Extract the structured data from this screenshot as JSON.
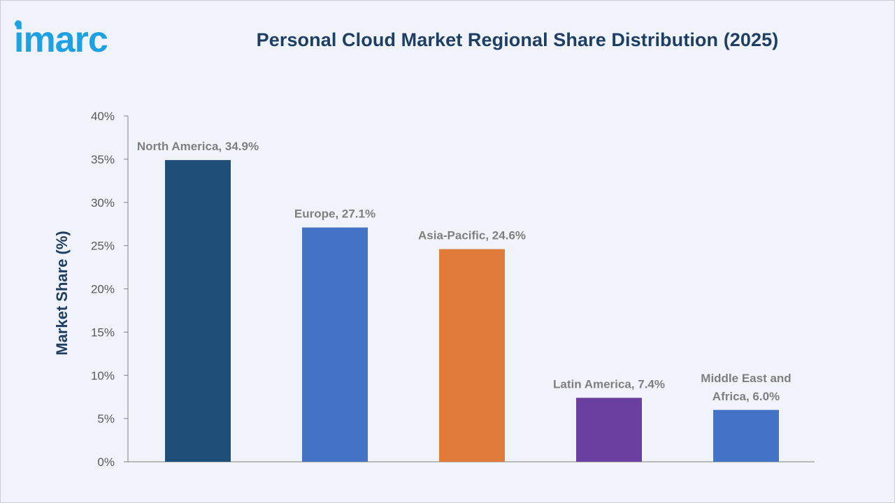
{
  "brand": {
    "logo_text": "imarc"
  },
  "colors": {
    "background": "#f0f3f9",
    "title": "#1f3e63",
    "axis": "#808080",
    "logo": "#1ea1e0"
  },
  "chart_data": {
    "type": "bar",
    "title": "Personal Cloud Market Regional Share Distribution (2025)",
    "xlabel": "",
    "ylabel": "Market Share (%)",
    "ylim": [
      0,
      40
    ],
    "ytick_step": 5,
    "ytick_format": "{v}%",
    "grid": false,
    "legend": "none",
    "categories": [
      "North America",
      "Europe",
      "Asia-Pacific",
      "Latin America",
      "Middle East and Africa"
    ],
    "values": [
      34.9,
      27.1,
      24.6,
      7.4,
      6.0
    ],
    "bar_colors": [
      "#1f4e79",
      "#4472c4",
      "#e07b39",
      "#6b3fa0",
      "#4472c4"
    ],
    "data_labels": [
      [
        "North America, 34.9%"
      ],
      [
        "Europe, 27.1%"
      ],
      [
        "Asia-Pacific, 24.6%"
      ],
      [
        "Latin America, 7.4%"
      ],
      [
        "Middle East and",
        "Africa, 6.0%"
      ]
    ]
  }
}
